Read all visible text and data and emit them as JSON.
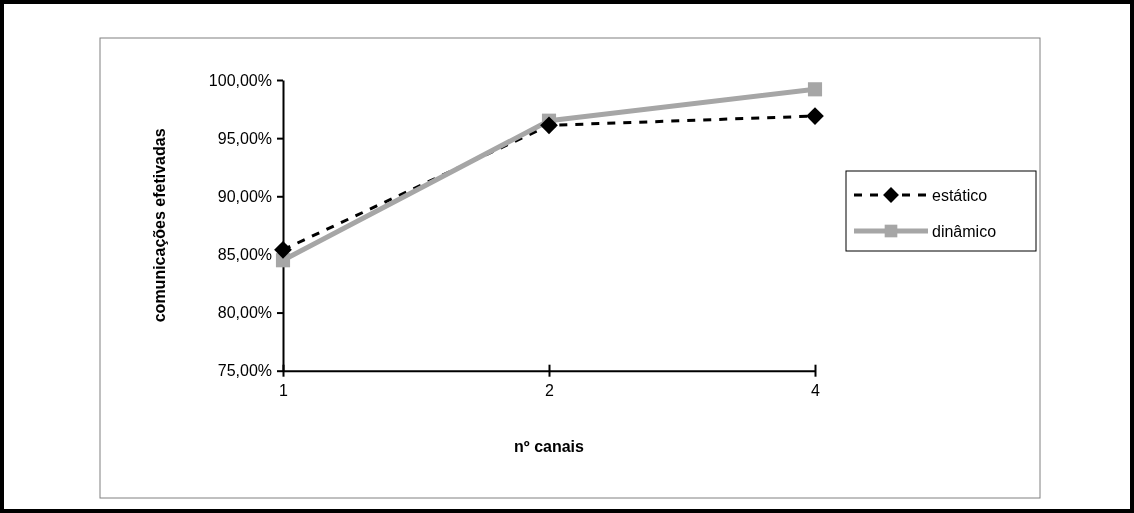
{
  "chart_data": {
    "type": "line",
    "xlabel": "nº canais",
    "ylabel": "comunicações efetivadas",
    "categories": [
      "1",
      "2",
      "4"
    ],
    "series": [
      {
        "name": "estático",
        "color": "#000000",
        "values": [
          85.4,
          96.1,
          96.9
        ],
        "marker": "diamond",
        "line_style": "dashed"
      },
      {
        "name": "dinâmico",
        "color": "#a6a6a6",
        "values": [
          84.5,
          96.5,
          99.2
        ],
        "marker": "square",
        "line_style": "solid"
      }
    ],
    "ylim": [
      75,
      100
    ],
    "yticks": [
      {
        "value": 75,
        "label": "75,00%"
      },
      {
        "value": 80,
        "label": "80,00%"
      },
      {
        "value": 85,
        "label": "85,00%"
      },
      {
        "value": 90,
        "label": "90,00%"
      },
      {
        "value": 95,
        "label": "95,00%"
      },
      {
        "value": 100,
        "label": "100,00%"
      }
    ],
    "grid": false,
    "legend": "right"
  }
}
